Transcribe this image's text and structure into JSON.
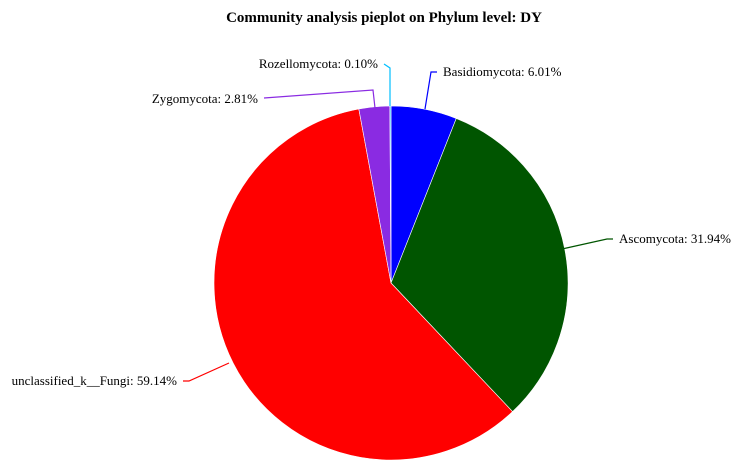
{
  "chart_data": {
    "type": "pie",
    "title": "Community analysis pieplot on Phylum level: DY",
    "slices": [
      {
        "label": "Basidiomycota",
        "value": 6.01,
        "display": "Basidiomycota: 6.01%",
        "color": "#0000ff"
      },
      {
        "label": "Ascomycota",
        "value": 31.94,
        "display": "Ascomycota: 31.94%",
        "color": "#005500"
      },
      {
        "label": "unclassified_k__Fungi",
        "value": 59.14,
        "display": "unclassified_k__Fungi: 59.14%",
        "color": "#ff0000"
      },
      {
        "label": "Zygomycota",
        "value": 2.81,
        "display": "Zygomycota: 2.81%",
        "color": "#8a2be2"
      },
      {
        "label": "Rozellomycota",
        "value": 0.1,
        "display": "Rozellomycota: 0.10%",
        "color": "#00bfff"
      }
    ],
    "start_angle": "12 o'clock",
    "direction": "clockwise",
    "legend": "none",
    "grid": false
  }
}
